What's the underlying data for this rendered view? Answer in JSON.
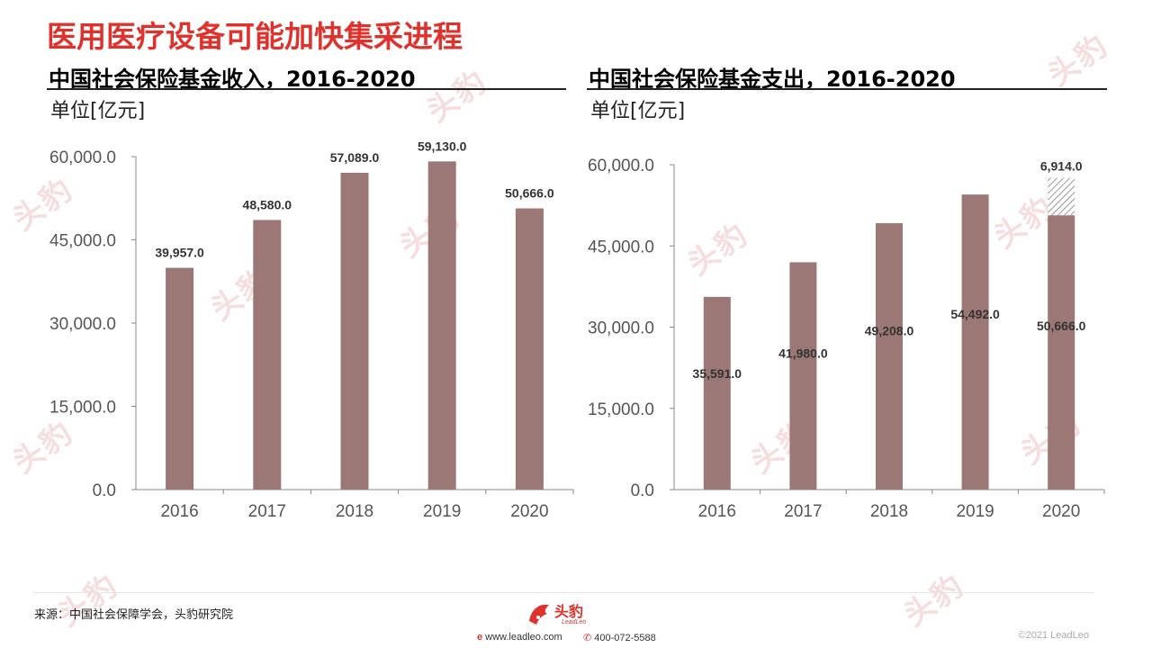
{
  "page": {
    "title": "医用医疗设备可能加快集采进程"
  },
  "chart_data": [
    {
      "type": "bar",
      "title": "中国社会保险基金收入，2016-2020",
      "unit_label": "单位[亿元]",
      "categories": [
        "2016",
        "2017",
        "2018",
        "2019",
        "2020"
      ],
      "values": [
        39957.0,
        48580.0,
        57089.0,
        59130.0,
        50666.0
      ],
      "value_labels": [
        "39,957.0",
        "48,580.0",
        "57,089.0",
        "59,130.0",
        "50,666.0"
      ],
      "yticks": [
        "0.0",
        "15,000.0",
        "30,000.0",
        "45,000.0",
        "60,000.0"
      ],
      "ylim": [
        0,
        60000
      ],
      "bar_color": "#9b7775",
      "label_position": "above"
    },
    {
      "type": "bar",
      "title": "中国社会保险基金支出，2016-2020",
      "unit_label": "单位[亿元]",
      "categories": [
        "2016",
        "2017",
        "2018",
        "2019",
        "2020"
      ],
      "values": [
        35591.0,
        41980.0,
        49208.0,
        54492.0,
        50666.0
      ],
      "value_labels": [
        "35,591.0",
        "41,980.0",
        "49,208.0",
        "54,492.0",
        "50,666.0"
      ],
      "stacked_extra": {
        "category": "2020",
        "value": 6914.0,
        "label": "6,914.0",
        "pattern": "hatched"
      },
      "yticks": [
        "0.0",
        "15,000.0",
        "30,000.0",
        "45,000.0",
        "60,000.0"
      ],
      "ylim": [
        0,
        60000
      ],
      "bar_color": "#9b7775",
      "label_position": "inside"
    }
  ],
  "footer": {
    "source": "来源：中国社会保障学会，头豹研究院",
    "logo_name": "头豹",
    "logo_sub": "LeadLeo",
    "website": "www.leadleo.com",
    "phone": "400-072-5588",
    "copyright": "©2021 LeadLeo"
  },
  "watermark_text": "头豹 LeadLeo",
  "colors": {
    "accent": "#e0322c",
    "bar": "#9b7775",
    "axis": "#888888",
    "tick_text": "#555555"
  }
}
